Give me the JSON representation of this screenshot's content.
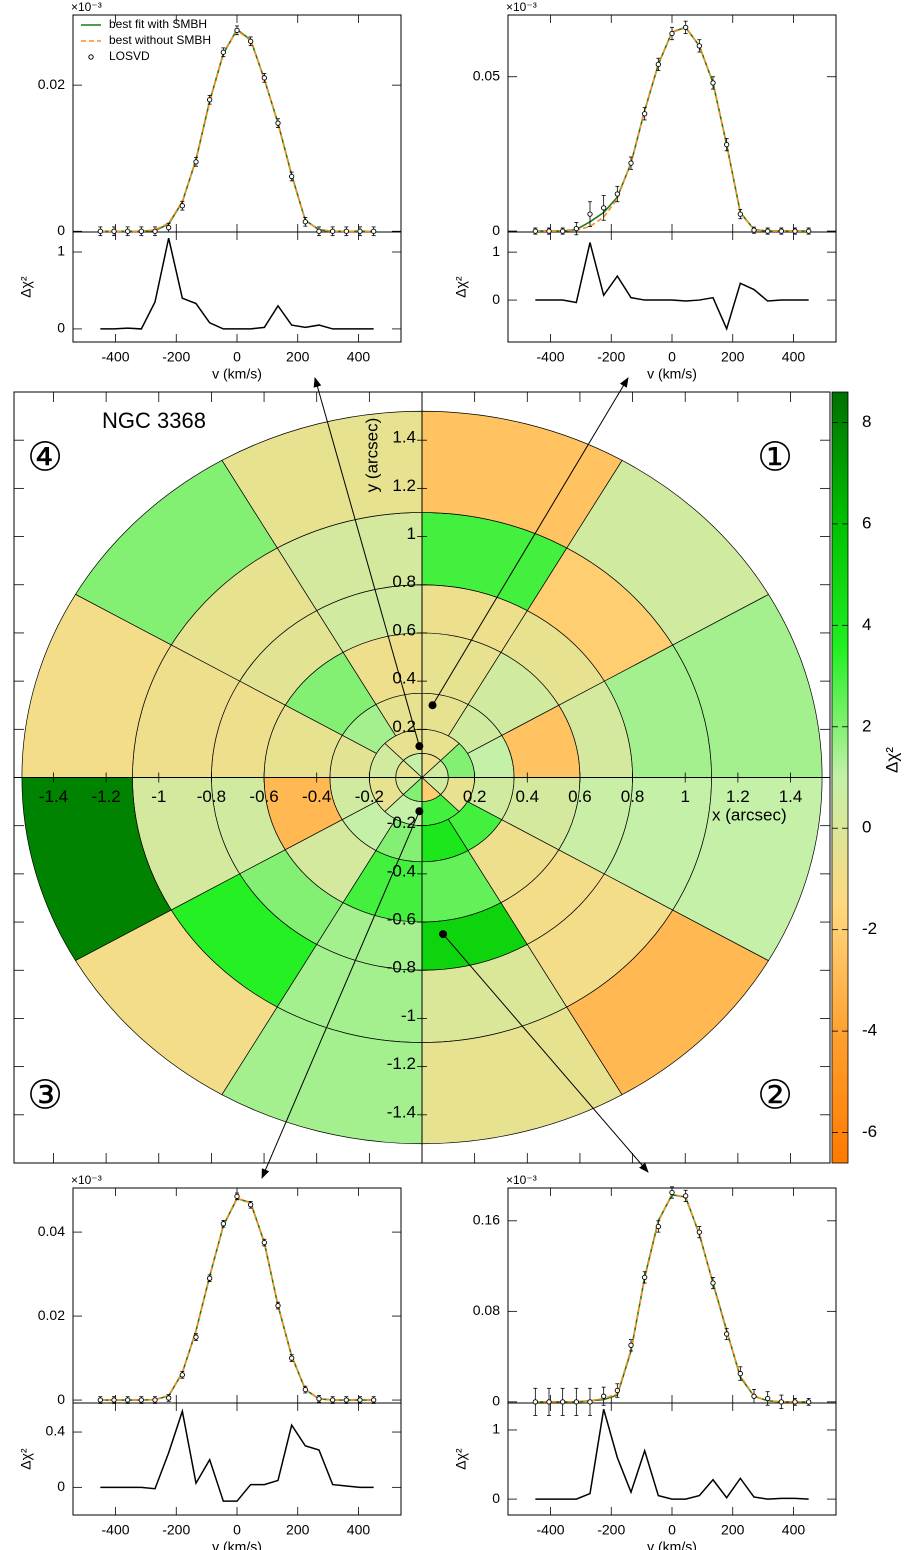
{
  "chart_data": [
    {
      "type": "losvd",
      "multiplier": "×10⁻³",
      "legend": "upper left",
      "x": [
        -450,
        -405,
        -360,
        -315,
        -270,
        -225,
        -180,
        -135,
        -90,
        -45,
        0,
        45,
        90,
        135,
        180,
        225,
        270,
        315,
        360,
        405,
        450
      ],
      "xlim": [
        -540,
        540
      ],
      "xticks": [
        -400,
        -200,
        0,
        200,
        400
      ],
      "xlabel": "v (km/s)",
      "ylim": [
        -0.0001,
        0.0296
      ],
      "yticks": [
        0,
        0.02
      ],
      "series": [
        {
          "name": "best fit with SMBH",
          "color": "#1a7a1a",
          "line_style": "solid",
          "values": [
            0,
            0,
            0,
            0,
            0.0001,
            0.001,
            0.004,
            0.0098,
            0.0178,
            0.0243,
            0.0276,
            0.0262,
            0.0208,
            0.0148,
            0.0077,
            0.0015,
            0.0002,
            0,
            0,
            0,
            0
          ]
        },
        {
          "name": "best without SMBH",
          "color": "#ff8c1a",
          "line_style": "dashed",
          "values": [
            0,
            0,
            0,
            0,
            0.0002,
            0.0011,
            0.0041,
            0.0097,
            0.0177,
            0.0244,
            0.0275,
            0.0261,
            0.0209,
            0.0147,
            0.0076,
            0.0015,
            0.0002,
            0,
            0,
            0,
            0
          ]
        },
        {
          "name": "LOSVD",
          "color": "#000000",
          "marker": "circle",
          "values": [
            0,
            0,
            0,
            0,
            0,
            0.0005,
            0.0035,
            0.0095,
            0.018,
            0.0245,
            0.0275,
            0.026,
            0.021,
            0.0148,
            0.0075,
            0.0013,
            0,
            0,
            0,
            0,
            0
          ],
          "errors": [
            0.0006,
            0.0006,
            0.0006,
            0.0006,
            0.0006,
            0.0006,
            0.0006,
            0.0006,
            0.0006,
            0.0006,
            0.0006,
            0.0006,
            0.0006,
            0.0006,
            0.0006,
            0.0006,
            0.0006,
            0.0006,
            0.0006,
            0.0006,
            0.0006
          ]
        }
      ],
      "residual": {
        "ylabel": "Δχ²",
        "ylim": [
          -0.17,
          1.26
        ],
        "yticks": [
          0,
          1
        ],
        "color": "#000000",
        "values": [
          0,
          0,
          0.01,
          0,
          0.35,
          1.18,
          0.4,
          0.33,
          0.08,
          0,
          0,
          0,
          0.02,
          0.3,
          0.05,
          0.02,
          0.05,
          0,
          0,
          0,
          0
        ]
      },
      "bin_position": [
        -0.01,
        0.13
      ]
    },
    {
      "type": "losvd",
      "multiplier": "×10⁻³",
      "x": [
        -450,
        -405,
        -360,
        -315,
        -270,
        -225,
        -180,
        -135,
        -90,
        -45,
        0,
        45,
        90,
        135,
        180,
        225,
        270,
        315,
        360,
        405,
        450
      ],
      "xlim": [
        -540,
        540
      ],
      "xticks": [
        -400,
        -200,
        0,
        200,
        400
      ],
      "xlabel": "v (km/s)",
      "ylim": [
        -0.0003,
        0.07
      ],
      "yticks": [
        0,
        0.05
      ],
      "series": [
        {
          "color": "#1a7a1a",
          "line_style": "solid",
          "values": [
            0,
            0,
            0,
            0.0005,
            0.003,
            0.006,
            0.011,
            0.022,
            0.039,
            0.054,
            0.0645,
            0.066,
            0.06,
            0.048,
            0.028,
            0.006,
            0.0005,
            0,
            0,
            0,
            0
          ]
        },
        {
          "color": "#ff8c1a",
          "line_style": "dashed",
          "values": [
            0,
            0,
            0,
            0.0003,
            0.0015,
            0.0045,
            0.0105,
            0.0222,
            0.0391,
            0.0541,
            0.0644,
            0.0659,
            0.0601,
            0.0481,
            0.0279,
            0.0058,
            0.0005,
            0,
            0,
            0,
            0
          ]
        },
        {
          "color": "#000000",
          "marker": "circle",
          "values": [
            0,
            0,
            0,
            0.0008,
            0.0055,
            0.0075,
            0.012,
            0.022,
            0.038,
            0.054,
            0.064,
            0.066,
            0.06,
            0.048,
            0.028,
            0.0055,
            0.0003,
            0,
            0,
            0,
            0
          ],
          "errors": [
            0.001,
            0.001,
            0.001,
            0.002,
            0.004,
            0.004,
            0.0025,
            0.002,
            0.002,
            0.002,
            0.002,
            0.002,
            0.002,
            0.002,
            0.002,
            0.0015,
            0.001,
            0.001,
            0.001,
            0.001,
            0.001
          ]
        }
      ],
      "residual": {
        "ylabel": "Δχ²",
        "ylim": [
          -0.875,
          1.42
        ],
        "yticks": [
          0,
          1
        ],
        "color": "#000000",
        "values": [
          0,
          0,
          0,
          -0.05,
          1.2,
          0.1,
          0.5,
          0.05,
          0,
          0,
          0,
          -0.02,
          0,
          0.05,
          -0.6,
          0.35,
          0.22,
          -0.02,
          0,
          0,
          0
        ]
      },
      "bin_position": [
        0.04,
        0.3
      ]
    },
    {
      "type": "losvd",
      "multiplier": "×10⁻³",
      "x": [
        -450,
        -405,
        -360,
        -315,
        -270,
        -225,
        -180,
        -135,
        -90,
        -45,
        0,
        45,
        90,
        135,
        180,
        225,
        270,
        315,
        360,
        405,
        450
      ],
      "xlim": [
        -540,
        540
      ],
      "xticks": [
        -400,
        -200,
        0,
        200,
        400
      ],
      "xlabel": "v (km/s)",
      "ylim": [
        -0.0007,
        0.0505
      ],
      "yticks": [
        0,
        0.02,
        0.04
      ],
      "series": [
        {
          "color": "#1a7a1a",
          "line_style": "solid",
          "values": [
            0,
            0,
            0,
            0,
            0.0001,
            0.001,
            0.0065,
            0.0165,
            0.0295,
            0.0415,
            0.048,
            0.047,
            0.0375,
            0.0225,
            0.0105,
            0.0025,
            0.0003,
            0,
            0,
            0,
            0
          ]
        },
        {
          "color": "#ff8c1a",
          "line_style": "dashed",
          "values": [
            0,
            0,
            0,
            0,
            0.0001,
            0.0011,
            0.0066,
            0.0164,
            0.0294,
            0.0416,
            0.0481,
            0.0469,
            0.0374,
            0.0226,
            0.0104,
            0.0026,
            0.0003,
            0,
            0,
            0,
            0
          ]
        },
        {
          "color": "#000000",
          "marker": "circle",
          "values": [
            0,
            0,
            0,
            0,
            0,
            0.0005,
            0.006,
            0.015,
            0.029,
            0.042,
            0.0485,
            0.0465,
            0.0375,
            0.0225,
            0.01,
            0.0025,
            0.0003,
            0,
            0,
            0,
            0
          ],
          "errors": [
            0.0008,
            0.0008,
            0.0008,
            0.0008,
            0.0008,
            0.0008,
            0.0008,
            0.0008,
            0.0008,
            0.0008,
            0.0008,
            0.0008,
            0.0008,
            0.0008,
            0.0008,
            0.0008,
            0.0008,
            0.0008,
            0.0008,
            0.0008,
            0.0008
          ]
        }
      ],
      "residual": {
        "ylabel": "Δχ²",
        "ylim": [
          -0.2,
          0.61
        ],
        "yticks": [
          0,
          0.4
        ],
        "color": "#000000",
        "values": [
          0,
          0,
          0,
          0,
          -0.01,
          0.25,
          0.55,
          0.03,
          0.2,
          -0.1,
          -0.1,
          0.02,
          0.02,
          0.05,
          0.45,
          0.3,
          0.27,
          0.02,
          0.01,
          0,
          0
        ]
      },
      "bin_position": [
        -0.01,
        -0.14
      ]
    },
    {
      "type": "losvd",
      "multiplier": "×10⁻³",
      "x": [
        -450,
        -405,
        -360,
        -315,
        -270,
        -225,
        -180,
        -135,
        -90,
        -45,
        0,
        45,
        90,
        135,
        180,
        225,
        270,
        315,
        360,
        405,
        450
      ],
      "xlim": [
        -540,
        540
      ],
      "xticks": [
        -400,
        -200,
        0,
        200,
        400
      ],
      "xlabel": "v (km/s)",
      "ylim": [
        -0.001,
        0.189
      ],
      "yticks": [
        0,
        0.08,
        0.16
      ],
      "series": [
        {
          "color": "#1a7a1a",
          "line_style": "solid",
          "values": [
            0,
            0,
            0,
            0,
            0.001,
            0.002,
            0.006,
            0.045,
            0.11,
            0.16,
            0.183,
            0.181,
            0.148,
            0.105,
            0.063,
            0.022,
            0.005,
            0.001,
            0,
            0,
            0
          ]
        },
        {
          "color": "#ff8c1a",
          "line_style": "dashed",
          "values": [
            0,
            0,
            0,
            0,
            0.001,
            0.003,
            0.007,
            0.046,
            0.109,
            0.159,
            0.184,
            0.18,
            0.149,
            0.104,
            0.062,
            0.023,
            0.005,
            0.001,
            0,
            0,
            0
          ]
        },
        {
          "color": "#000000",
          "marker": "circle",
          "values": [
            0,
            0,
            0,
            0,
            0,
            0.005,
            0.01,
            0.05,
            0.11,
            0.155,
            0.185,
            0.182,
            0.15,
            0.105,
            0.06,
            0.025,
            0.005,
            0.003,
            0,
            0,
            0
          ],
          "errors": [
            0.012,
            0.012,
            0.012,
            0.012,
            0.012,
            0.008,
            0.006,
            0.005,
            0.005,
            0.005,
            0.005,
            0.005,
            0.005,
            0.005,
            0.005,
            0.006,
            0.006,
            0.006,
            0.006,
            0.003,
            0.003
          ]
        }
      ],
      "residual": {
        "ylabel": "Δχ²",
        "ylim": [
          -0.23,
          1.39
        ],
        "yticks": [
          0,
          1
        ],
        "color": "#000000",
        "values": [
          0,
          0,
          0,
          0,
          0.08,
          1.3,
          0.6,
          0.1,
          0.7,
          0.05,
          0,
          0,
          0.05,
          0.28,
          0.02,
          0.3,
          0.03,
          0,
          0.01,
          0.01,
          0
        ]
      },
      "bin_position": [
        0.08,
        -0.65
      ]
    },
    {
      "type": "polar_map",
      "title": "NGC 3368",
      "xlabel": "x (arcsec)",
      "ylabel": "y (arcsec)",
      "xlim": [
        -1.55,
        1.55
      ],
      "ylim": [
        -1.6,
        1.6
      ],
      "xticks": [
        -1.4,
        -1.2,
        -1,
        -0.8,
        -0.6,
        -0.4,
        -0.2,
        0.2,
        0.4,
        0.6,
        0.8,
        1,
        1.2,
        1.4
      ],
      "yticks": [
        -1.4,
        -1.2,
        -1,
        -0.8,
        -0.6,
        -0.4,
        -0.2,
        0.2,
        0.4,
        0.6,
        0.8,
        1,
        1.2,
        1.4
      ],
      "quadrant_labels": [
        "①",
        "②",
        "③",
        "④"
      ],
      "rings": [
        {
          "r": [
            0,
            0.1
          ],
          "values": [
            0.5,
            -0.8,
            1,
            -0.5,
            0.3,
            2,
            -2,
            0.5
          ]
        },
        {
          "r": [
            0.1,
            0.2
          ],
          "values": [
            2,
            -0.5,
            -0.5,
            0.5,
            -0.5,
            1,
            3,
            -0.5
          ]
        },
        {
          "r": [
            0.2,
            0.35
          ],
          "values": [
            1,
            0.5,
            -0.5,
            -0.5,
            1.5,
            -0.3,
            0.5,
            1,
            2,
            4,
            3,
            0.5
          ]
        },
        {
          "r": [
            0.35,
            0.6
          ],
          "values": [
            -2.5,
            0.5,
            -0.5,
            -0.8,
            2,
            -0.5,
            -3,
            0.3,
            3,
            2.5,
            -0.8,
            0.3
          ]
        },
        {
          "r": [
            0.6,
            0.8
          ],
          "values": [
            0.3,
            -0.5,
            -0.8,
            0.5,
            -0.3,
            -0.8,
            0.5,
            2,
            1.5,
            5,
            -1,
            0.8
          ]
        },
        {
          "r": [
            0.8,
            1.1
          ],
          "values": [
            1.5,
            -2,
            3,
            0.3,
            -0.5,
            -0.8,
            0.3,
            3.5,
            1.5,
            0,
            -1,
            1
          ]
        },
        {
          "r": [
            1.1,
            1.52
          ],
          "values": [
            1.5,
            0.5,
            -2.5,
            -0.5,
            2,
            -1,
            8,
            -1,
            1.5,
            -0.5,
            -3,
            1
          ]
        }
      ],
      "colorbar": {
        "label": "Δχ²",
        "clim": [
          -6.6,
          8.6
        ],
        "ticks": [
          -6,
          -4,
          -2,
          0,
          2,
          4,
          6,
          8
        ],
        "colors": [
          "#ff7a00",
          "#ffa030",
          "#ffd880",
          "#c4f0a8",
          "#22f022",
          "#00c000",
          "#007000"
        ]
      }
    }
  ]
}
